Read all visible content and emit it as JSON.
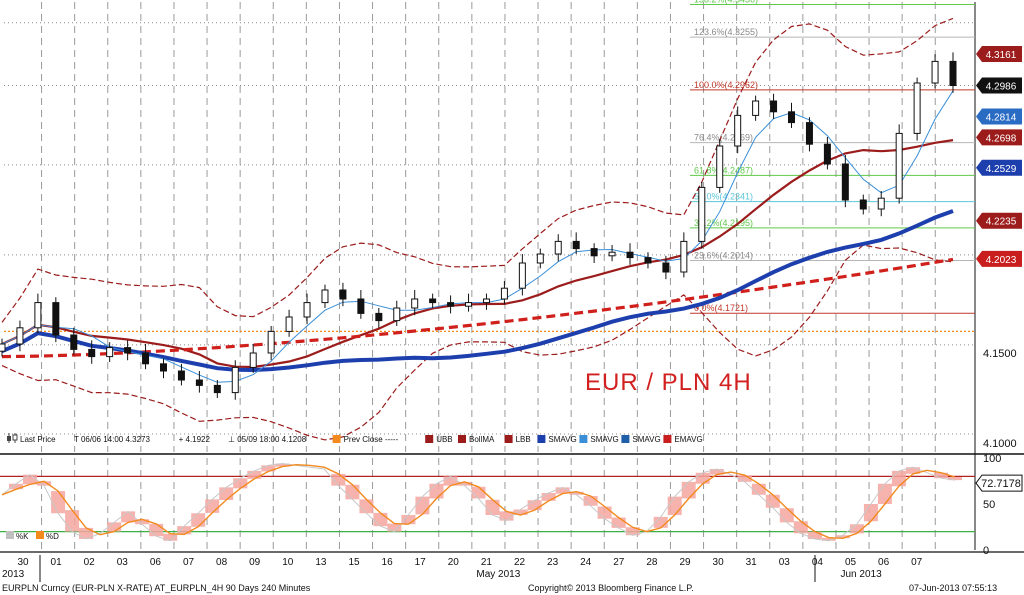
{
  "chart_data": [
    {
      "type": "candlestick",
      "title": "EUR / PLN 4H",
      "y_axis_labels": [
        "4.1500",
        "4.1000"
      ],
      "ylim": [
        4.095,
        4.345
      ],
      "x_dates": [
        "30",
        "01",
        "02",
        "03",
        "06",
        "07",
        "08",
        "09",
        "10",
        "13",
        "15",
        "16",
        "17",
        "20",
        "21",
        "22",
        "23",
        "24",
        "27",
        "28",
        "29",
        "30",
        "31",
        "03",
        "04",
        "05",
        "06",
        "07"
      ],
      "month_labels": [
        {
          "label": "2013",
          "day_index": 0
        },
        {
          "label": "May 2013",
          "day_index": 14
        },
        {
          "label": "Jun 2013",
          "day_index": 25
        }
      ],
      "closes": [
        4.155,
        4.164,
        4.178,
        4.16,
        4.152,
        4.148,
        4.153,
        4.15,
        4.144,
        4.14,
        4.135,
        4.132,
        4.128,
        4.142,
        4.15,
        4.162,
        4.17,
        4.178,
        4.185,
        4.18,
        4.172,
        4.168,
        4.175,
        4.18,
        4.178,
        4.176,
        4.178,
        4.18,
        4.186,
        4.2,
        4.205,
        4.212,
        4.208,
        4.204,
        4.206,
        4.203,
        4.2,
        4.195,
        4.212,
        4.242,
        4.265,
        4.282,
        4.29,
        4.284,
        4.278,
        4.266,
        4.255,
        4.235,
        4.23,
        4.236,
        4.272,
        4.3,
        4.312,
        4.2986
      ],
      "price_tags": [
        {
          "value": 4.3161,
          "label": "4.3161",
          "color": "#9c1c1c"
        },
        {
          "value": 4.2986,
          "label": "4.2986",
          "color": "#111111"
        },
        {
          "value": 4.2814,
          "label": "4.2814",
          "color": "#2a6cc4"
        },
        {
          "value": 4.2698,
          "label": "4.2698",
          "color": "#9c1c1c"
        },
        {
          "value": 4.2529,
          "label": "4.2529",
          "color": "#1d3fae"
        },
        {
          "value": 4.2235,
          "label": "4.2235",
          "color": "#9c1c1c"
        },
        {
          "value": 4.2023,
          "label": "4.2023",
          "color": "#c81e1e"
        }
      ],
      "fib_levels": [
        {
          "label": "138.2%(4.3436)",
          "value": 4.3436,
          "color": "#5fc94a"
        },
        {
          "label": "123.6%(4.3255)",
          "value": 4.3255,
          "color": "#b5b5b5"
        },
        {
          "label": "100.0%(4.2962)",
          "value": 4.2962,
          "color": "#c0392b"
        },
        {
          "label": "76.4%(4.2669)",
          "value": 4.2669,
          "color": "#b5b5b5"
        },
        {
          "label": "61.8%(4.2487)",
          "value": 4.2487,
          "color": "#5fc94a"
        },
        {
          "label": "50.0%(4.2341)",
          "value": 4.2341,
          "color": "#5cc6d8"
        },
        {
          "label": "38.2%(4.2195)",
          "value": 4.2195,
          "color": "#5fc94a"
        },
        {
          "label": "23.6%(4.2014)",
          "value": 4.2014,
          "color": "#b5b5b5"
        },
        {
          "label": "0.0%(4.1721)",
          "value": 4.1721,
          "color": "#c0392b"
        }
      ],
      "legend": [
        {
          "label": "Last Price",
          "swatch": "#444444",
          "kind": "candle"
        },
        {
          "label": "T  06/06 14:00 4.3273",
          "swatch": "",
          "kind": "text"
        },
        {
          "label": "+  4.1922",
          "swatch": "",
          "kind": "text"
        },
        {
          "label": "⊥  05/09 18:00 4.1208",
          "swatch": "",
          "kind": "text"
        },
        {
          "label": "Prev Close -----",
          "swatch": "#f28a1e",
          "kind": "box"
        },
        {
          "label": "UBB",
          "swatch": "#9c1c1c",
          "kind": "box"
        },
        {
          "label": "BollMA",
          "swatch": "#9c1c1c",
          "kind": "box"
        },
        {
          "label": "LBB",
          "swatch": "#9c1c1c",
          "kind": "box"
        },
        {
          "label": "SMAVG",
          "swatch": "#1d3fae",
          "kind": "box"
        },
        {
          "label": "SMAVG",
          "swatch": "#3a8fd8",
          "kind": "box"
        },
        {
          "label": "SMAVG",
          "swatch": "#1e5fa8",
          "kind": "box"
        },
        {
          "label": "EMAVG",
          "swatch": "#c81e1e",
          "kind": "box"
        }
      ]
    },
    {
      "type": "line",
      "name": "stochastic",
      "ylim": [
        0,
        100
      ],
      "y_axis_labels": [
        "100",
        "50",
        "0"
      ],
      "reference_lines": [
        80,
        20
      ],
      "k_values": [
        60,
        72,
        82,
        70,
        40,
        20,
        12,
        18,
        30,
        42,
        28,
        15,
        10,
        26,
        40,
        55,
        68,
        78,
        86,
        92,
        94,
        92,
        90,
        88,
        70,
        55,
        40,
        26,
        20,
        38,
        58,
        72,
        80,
        70,
        56,
        38,
        32,
        44,
        54,
        62,
        68,
        60,
        48,
        34,
        24,
        16,
        20,
        36,
        58,
        74,
        84,
        88,
        82,
        74,
        60,
        46,
        30,
        18,
        12,
        10,
        16,
        28,
        50,
        72,
        86,
        90,
        84,
        78,
        76
      ],
      "last_value_label": "72.7178",
      "legend": [
        {
          "label": "%K",
          "color": "#c0c0c0"
        },
        {
          "label": "%D",
          "color": "#f28a1e"
        }
      ]
    }
  ],
  "footer": {
    "left": "EURPLN Curncy (EUR-PLN X-RATE) AT_EURPLN_4H 90 Days 240 Minutes",
    "center": "Copyright© 2013 Bloomberg Finance L.P.",
    "right": "07-Jun-2013 07:55:13"
  },
  "colors": {
    "bollinger": "#9c1c1c",
    "sma_thick": "#1d3fae",
    "sma_thin": "#3a8fd8",
    "ema": "#d0201c",
    "stoch_d": "#f28a1e",
    "stoch_k_fill": "#f4a6a0",
    "grid": "#9a9a9a",
    "prev_close": "#f28a1e"
  }
}
